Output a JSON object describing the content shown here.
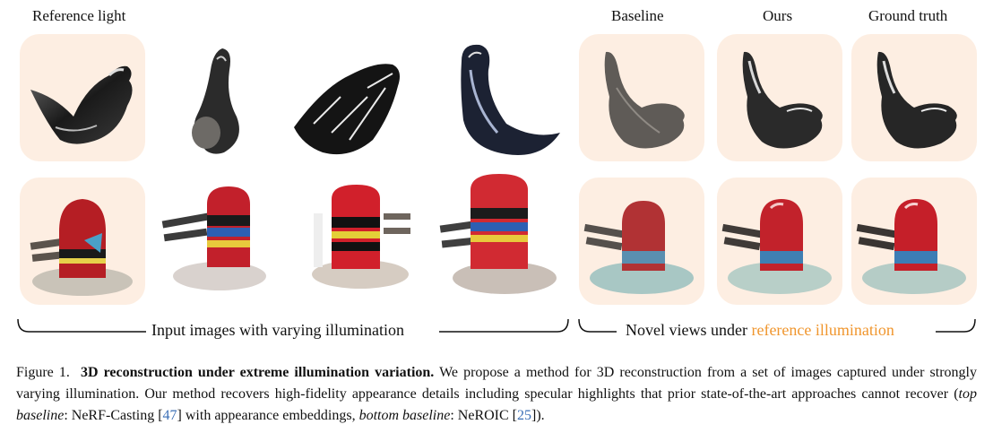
{
  "columns": {
    "reference_light": "Reference light",
    "baseline": "Baseline",
    "ours": "Ours",
    "ground_truth": "Ground truth"
  },
  "braces": {
    "left_label": "Input images with varying illumination",
    "right_label_prefix": "Novel views under ",
    "right_label_accent": "reference illumination"
  },
  "caption": {
    "figure_label": "Figure 1.",
    "title": "3D reconstruction under extreme illumination variation.",
    "body_1": "We propose a method for 3D reconstruction from a set of images captured under strongly varying illumination. Our method recovers high-fidelity appearance details including specular highlights that prior state-of-the-art approaches cannot recover (",
    "top_baseline_label": "top baseline",
    "body_2": ": NeRF-Casting [",
    "cite_1": "47",
    "body_3": "] with appearance embeddings, ",
    "bottom_baseline_label": "bottom baseline",
    "body_4": ": NeROIC [",
    "cite_2": "25",
    "body_5": "])."
  },
  "colors": {
    "tile_background": "#fdeee2",
    "accent": "#f0962e",
    "citation": "#3b6fb6"
  }
}
